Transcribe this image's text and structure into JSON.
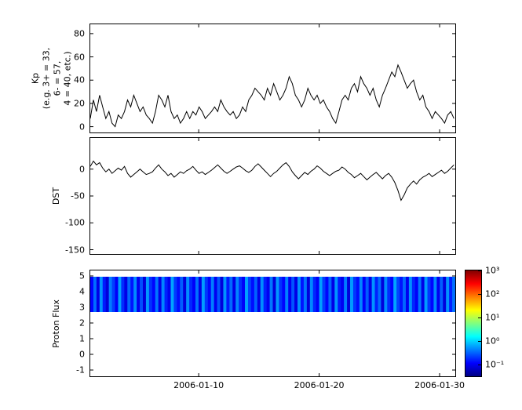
{
  "figure": {
    "background": "#ffffff",
    "line_color": "#000000"
  },
  "chart_data": [
    {
      "type": "line",
      "name": "kp",
      "ylabel": "Kp\n(e.g. 3+ = 33,\n6- = 57,\n4 = 40, etc.)",
      "ylim": [
        -5,
        88
      ],
      "yticks": [
        0,
        20,
        40,
        60,
        80
      ],
      "line_color": "#000000",
      "x": {
        "start_day": 1,
        "step_days": 0.258,
        "lim": [
          1,
          31.3
        ],
        "ticks": [
          {
            "day": 10,
            "label": "2006-01-10"
          },
          {
            "day": 20,
            "label": "2006-01-20"
          },
          {
            "day": 30,
            "label": "2006-01-30"
          }
        ]
      },
      "values": [
        7,
        23,
        13,
        27,
        17,
        7,
        13,
        3,
        0,
        10,
        7,
        13,
        23,
        17,
        27,
        20,
        13,
        17,
        10,
        7,
        3,
        13,
        27,
        23,
        17,
        27,
        13,
        7,
        10,
        3,
        7,
        13,
        7,
        13,
        10,
        17,
        13,
        7,
        10,
        13,
        17,
        13,
        23,
        17,
        13,
        10,
        13,
        7,
        10,
        17,
        13,
        23,
        27,
        33,
        30,
        27,
        23,
        33,
        27,
        37,
        30,
        23,
        27,
        33,
        43,
        37,
        27,
        23,
        17,
        23,
        33,
        27,
        23,
        27,
        20,
        23,
        17,
        13,
        7,
        3,
        13,
        23,
        27,
        23,
        33,
        37,
        30,
        43,
        37,
        33,
        27,
        33,
        23,
        17,
        27,
        33,
        40,
        47,
        43,
        53,
        47,
        40,
        33,
        37,
        40,
        30,
        23,
        27,
        17,
        13,
        7,
        13,
        10,
        7,
        3,
        10,
        13,
        7
      ]
    },
    {
      "type": "line",
      "name": "dst",
      "ylabel": "DST",
      "ylim": [
        -158,
        58
      ],
      "yticks": [
        0,
        -50,
        -100,
        -150
      ],
      "line_color": "#000000",
      "values": [
        5,
        15,
        8,
        12,
        2,
        -5,
        0,
        -8,
        -3,
        2,
        -2,
        5,
        -8,
        -15,
        -10,
        -5,
        0,
        -5,
        -10,
        -8,
        -5,
        2,
        8,
        0,
        -5,
        -12,
        -8,
        -15,
        -10,
        -5,
        -8,
        -3,
        0,
        5,
        -2,
        -8,
        -5,
        -10,
        -6,
        -2,
        3,
        8,
        2,
        -4,
        -8,
        -4,
        0,
        4,
        6,
        2,
        -3,
        -6,
        -2,
        5,
        10,
        4,
        -2,
        -8,
        -14,
        -8,
        -4,
        2,
        8,
        12,
        5,
        -5,
        -12,
        -18,
        -12,
        -6,
        -10,
        -4,
        0,
        6,
        2,
        -4,
        -8,
        -12,
        -8,
        -4,
        -2,
        4,
        0,
        -6,
        -10,
        -16,
        -12,
        -8,
        -14,
        -20,
        -15,
        -10,
        -6,
        -12,
        -18,
        -12,
        -8,
        -15,
        -25,
        -40,
        -58,
        -48,
        -35,
        -28,
        -22,
        -28,
        -20,
        -15,
        -12,
        -8,
        -14,
        -10,
        -6,
        -2,
        -8,
        -4,
        2,
        8
      ]
    },
    {
      "type": "heatmap",
      "name": "proton_flux",
      "ylabel": "Proton Flux",
      "ylim": [
        -1.4,
        5.35
      ],
      "yticks": [
        5,
        4,
        3,
        2,
        1,
        0,
        -1
      ],
      "band_y_range": [
        2.7,
        4.95
      ],
      "values": [
        0.12,
        0.35,
        0.09,
        0.52,
        0.15,
        0.08,
        0.41,
        0.22,
        0.11,
        0.6,
        0.18,
        0.09,
        0.33,
        0.14,
        0.47,
        0.1,
        0.26,
        0.08,
        0.55,
        0.19,
        0.12,
        0.38,
        0.09,
        0.44,
        0.16,
        0.1,
        0.62,
        0.21,
        0.13,
        0.3,
        0.08,
        0.49,
        0.17,
        0.11,
        0.36,
        0.09,
        0.57,
        0.2,
        0.12,
        0.42,
        0.1,
        0.28,
        0.08,
        0.51,
        0.15,
        0.34,
        0.09,
        0.45,
        0.18,
        0.11,
        0.59,
        0.22,
        0.13,
        0.31,
        0.09,
        0.48,
        0.16,
        0.1,
        0.39,
        0.08,
        0.54,
        0.19,
        0.12,
        0.43,
        0.1,
        0.27,
        0.09,
        0.5,
        0.14,
        0.37,
        0.08,
        0.46,
        0.17,
        0.11,
        0.58,
        0.21,
        0.12,
        0.32,
        0.09,
        0.53,
        0.15,
        0.1,
        0.4,
        0.08,
        0.56,
        0.2,
        0.13,
        0.44,
        0.11,
        0.29,
        0.09,
        0.52,
        0.16,
        0.35,
        0.08,
        0.47,
        0.18,
        0.12,
        0.61,
        0.23,
        0.14,
        0.33,
        0.1,
        0.5,
        0.17,
        0.11,
        0.38,
        0.09,
        0.55,
        0.2,
        0.12,
        0.45,
        0.1,
        0.3,
        0.08,
        0.51,
        0.16,
        0.36
      ],
      "colorbar": {
        "scale": "log",
        "range_log10": [
          -1.5,
          3
        ],
        "colormap": "jet",
        "ticks": [
          {
            "exp": 3,
            "label": "10³"
          },
          {
            "exp": 2,
            "label": "10²"
          },
          {
            "exp": 1,
            "label": "10¹"
          },
          {
            "exp": 0,
            "label": "10⁰"
          },
          {
            "exp": -1,
            "label": "10⁻¹"
          }
        ],
        "stops": [
          {
            "t": 0.0,
            "rgb": [
              0,
              0,
              131
            ]
          },
          {
            "t": 0.125,
            "rgb": [
              0,
              0,
              255
            ]
          },
          {
            "t": 0.375,
            "rgb": [
              0,
              255,
              255
            ]
          },
          {
            "t": 0.625,
            "rgb": [
              255,
              255,
              0
            ]
          },
          {
            "t": 0.875,
            "rgb": [
              255,
              0,
              0
            ]
          },
          {
            "t": 1.0,
            "rgb": [
              128,
              0,
              0
            ]
          }
        ]
      }
    }
  ]
}
